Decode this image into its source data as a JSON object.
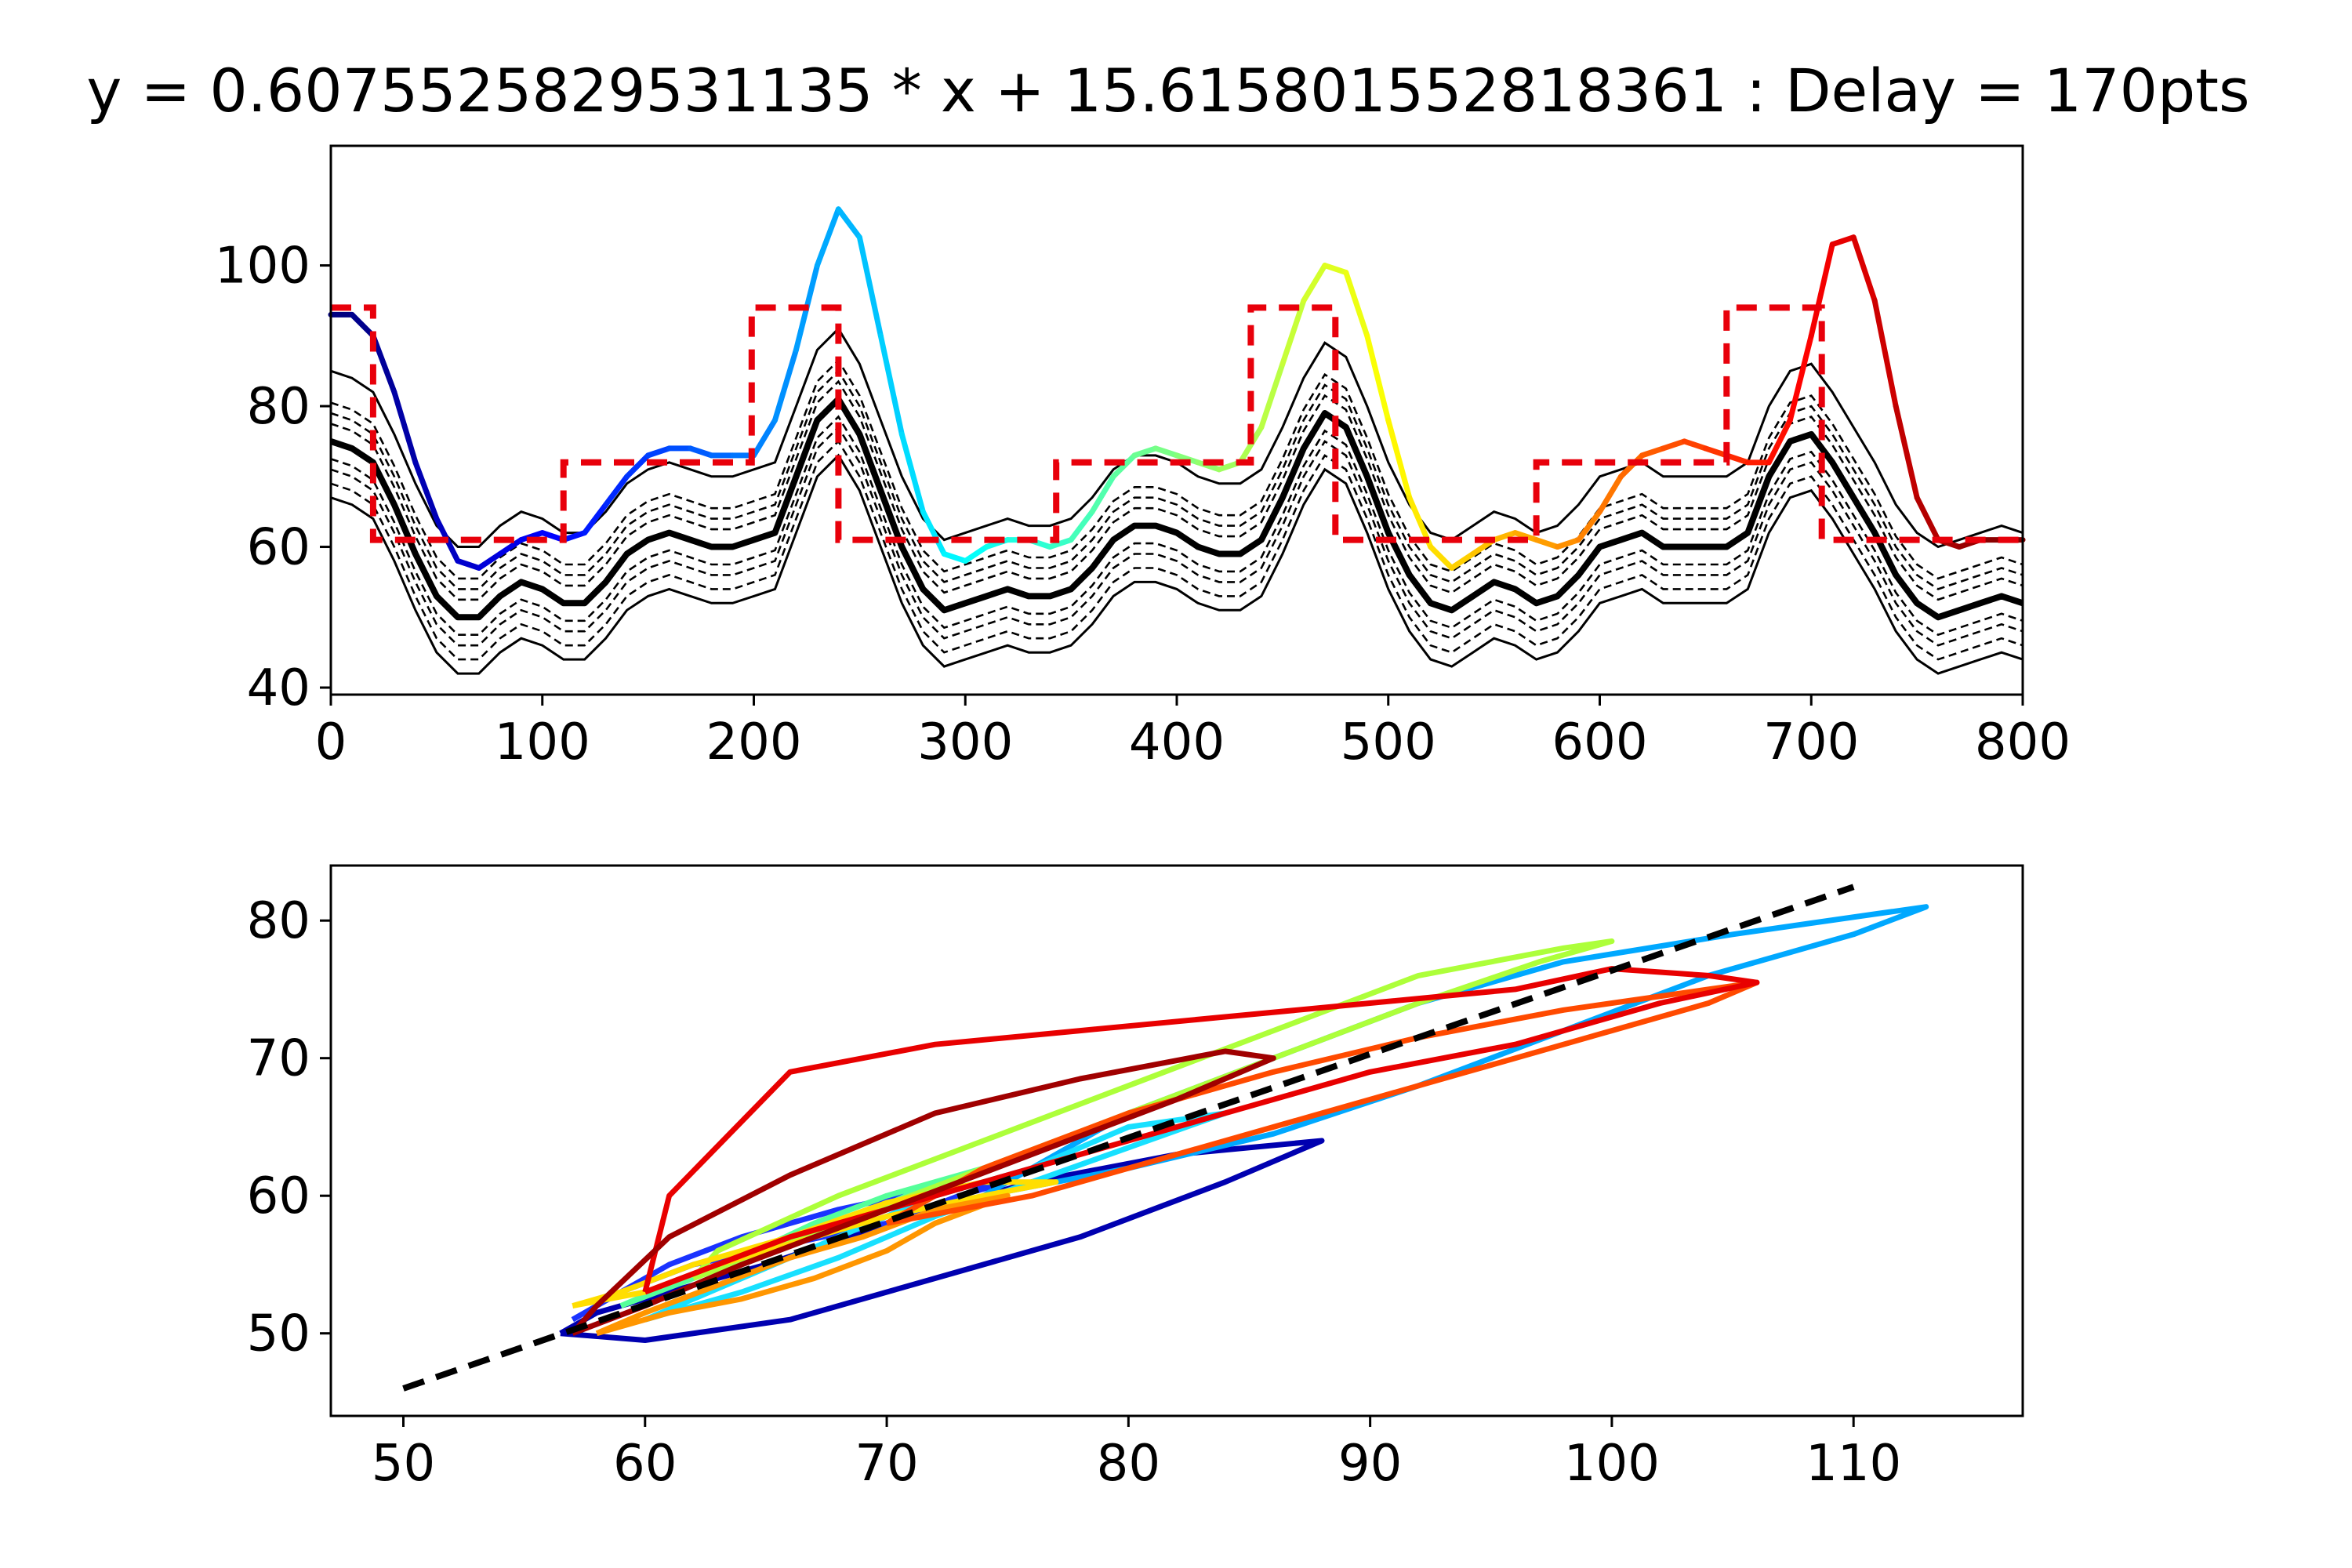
{
  "title": "y = 0.6075525829531135 * x + 15.615801552818361 : Delay = 170pts",
  "chart_data": [
    {
      "type": "line",
      "x_range": [
        0,
        800
      ],
      "ylim": [
        39,
        117
      ],
      "xticks": [
        0,
        100,
        200,
        300,
        400,
        500,
        600,
        700,
        800
      ],
      "yticks": [
        40,
        60,
        80,
        100
      ],
      "xlabel": "",
      "ylabel": "",
      "grid": false,
      "colored_signal": {
        "colormap": "jet",
        "x": [
          0,
          10,
          20,
          30,
          40,
          50,
          60,
          70,
          80,
          90,
          100,
          110,
          120,
          130,
          140,
          150,
          160,
          170,
          180,
          190,
          200,
          210,
          220,
          230,
          240,
          250,
          260,
          270,
          280,
          290,
          300,
          310,
          320,
          330,
          340,
          350,
          360,
          370,
          380,
          390,
          400,
          410,
          420,
          430,
          440,
          450,
          460,
          470,
          480,
          490,
          500,
          510,
          520,
          530,
          540,
          550,
          560,
          570,
          580,
          590,
          600,
          610,
          620,
          630,
          640,
          650,
          660,
          670,
          680,
          690,
          700,
          710,
          720,
          730,
          740,
          750,
          760,
          770,
          780,
          790,
          800
        ],
        "y": [
          93,
          93,
          90,
          82,
          72,
          64,
          58,
          57,
          59,
          61,
          62,
          61,
          62,
          66,
          70,
          73,
          74,
          74,
          73,
          73,
          73,
          78,
          88,
          100,
          108,
          104,
          90,
          76,
          65,
          59,
          58,
          60,
          61,
          61,
          60,
          61,
          65,
          70,
          73,
          74,
          73,
          72,
          71,
          72,
          77,
          86,
          95,
          100,
          99,
          90,
          78,
          67,
          60,
          57,
          59,
          61,
          62,
          61,
          60,
          61,
          65,
          70,
          73,
          74,
          75,
          74,
          73,
          72,
          72,
          78,
          90,
          103,
          104,
          95,
          80,
          67,
          61,
          60,
          61,
          61,
          61
        ]
      },
      "step_signal": {
        "color": "#e8000b",
        "style": "dashed",
        "x": [
          0,
          20,
          20,
          110,
          110,
          199,
          199,
          240,
          240,
          343,
          343,
          435,
          435,
          475,
          475,
          570,
          570,
          660,
          660,
          705,
          705,
          800
        ],
        "y": [
          94,
          94,
          61,
          61,
          72,
          72,
          94,
          94,
          61,
          61,
          72,
          72,
          94,
          94,
          61,
          61,
          72,
          72,
          94,
          94,
          61,
          61
        ]
      },
      "model_mean": {
        "color": "#000000",
        "x": [
          0,
          10,
          20,
          30,
          40,
          50,
          60,
          70,
          80,
          90,
          100,
          110,
          120,
          130,
          140,
          150,
          160,
          170,
          180,
          190,
          200,
          210,
          220,
          230,
          240,
          250,
          260,
          270,
          280,
          290,
          300,
          310,
          320,
          330,
          340,
          350,
          360,
          370,
          380,
          390,
          400,
          410,
          420,
          430,
          440,
          450,
          460,
          470,
          480,
          490,
          500,
          510,
          520,
          530,
          540,
          550,
          560,
          570,
          580,
          590,
          600,
          610,
          620,
          630,
          640,
          650,
          660,
          670,
          680,
          690,
          700,
          710,
          720,
          730,
          740,
          750,
          760,
          770,
          780,
          790,
          800
        ],
        "y": [
          75,
          74,
          72,
          66,
          59,
          53,
          50,
          50,
          53,
          55,
          54,
          52,
          52,
          55,
          59,
          61,
          62,
          61,
          60,
          60,
          61,
          62,
          70,
          78,
          81,
          76,
          68,
          60,
          54,
          51,
          52,
          53,
          54,
          53,
          53,
          54,
          57,
          61,
          63,
          63,
          62,
          60,
          59,
          59,
          61,
          67,
          74,
          79,
          77,
          70,
          62,
          56,
          52,
          51,
          53,
          55,
          54,
          52,
          53,
          56,
          60,
          61,
          62,
          60,
          60,
          60,
          60,
          62,
          70,
          75,
          76,
          72,
          67,
          62,
          56,
          52,
          50,
          51,
          52,
          53,
          52
        ]
      },
      "confidence_offsets": [
        10,
        5.5,
        4,
        2.5,
        -2.5,
        -4,
        -6,
        -8
      ]
    },
    {
      "type": "scatter",
      "xlim": [
        47,
        117
      ],
      "ylim": [
        44,
        84
      ],
      "xticks": [
        50,
        60,
        70,
        80,
        90,
        100,
        110
      ],
      "yticks": [
        50,
        60,
        70,
        80
      ],
      "xlabel": "",
      "ylabel": "",
      "grid": false,
      "fit_line": {
        "slope": 0.6075525829531135,
        "intercept": 15.615801552818361,
        "x": [
          50,
          110
        ],
        "color": "#000000",
        "style": "dashed"
      },
      "loops": [
        {
          "color": "#0000b0",
          "x": [
            56.5,
            60,
            66,
            72,
            78,
            84,
            88,
            82,
            76,
            70,
            65,
            61,
            58,
            56.5
          ],
          "y": [
            50,
            49.5,
            51,
            54,
            57,
            61,
            64,
            63,
            61,
            58,
            55,
            53,
            51.5,
            50
          ]
        },
        {
          "color": "#1a33ff",
          "x": [
            57,
            59,
            62,
            66,
            70,
            73,
            75,
            72,
            68,
            64,
            61,
            59,
            57
          ],
          "y": [
            51,
            53,
            55,
            56.5,
            58,
            60,
            61,
            60.5,
            59,
            57,
            55,
            53,
            51
          ]
        },
        {
          "color": "#00a8ff",
          "x": [
            74,
            80,
            86,
            92,
            98,
            104,
            110,
            113,
            111,
            105,
            98,
            92,
            86,
            80,
            76,
            74
          ],
          "y": [
            60,
            62,
            64.5,
            68,
            72,
            76,
            79,
            81,
            80.5,
            79,
            77,
            74,
            70,
            66,
            62,
            60
          ]
        },
        {
          "color": "#18e0ff",
          "x": [
            60,
            64,
            68,
            72,
            76,
            80,
            84,
            80,
            76,
            72,
            68,
            64,
            60
          ],
          "y": [
            51,
            53,
            55.5,
            58.5,
            61,
            63.5,
            66,
            65,
            62,
            60,
            57,
            54,
            51
          ]
        },
        {
          "color": "#55ff9a",
          "x": [
            59,
            62,
            65,
            69,
            72,
            74,
            73,
            70,
            67,
            64,
            61,
            59
          ],
          "y": [
            52,
            54,
            56,
            58.5,
            61,
            62,
            61.5,
            60,
            58,
            55.5,
            53.5,
            52
          ]
        },
        {
          "color": "#adff3a",
          "x": [
            62,
            68,
            74,
            80,
            86,
            92,
            97,
            100,
            98,
            92,
            86,
            80,
            74,
            68,
            63,
            62
          ],
          "y": [
            54,
            58,
            62,
            66,
            70,
            74,
            77,
            78.5,
            78,
            76,
            72,
            68,
            64,
            60,
            56,
            54
          ]
        },
        {
          "color": "#ffde00",
          "x": [
            57,
            60,
            63,
            66,
            70,
            74,
            77,
            74,
            70,
            66,
            62,
            59,
            57
          ],
          "y": [
            52,
            53,
            55,
            56.5,
            58.5,
            60,
            61,
            61,
            59.5,
            57,
            55,
            53,
            52
          ]
        },
        {
          "color": "#ff9600",
          "x": [
            58,
            61,
            64,
            67,
            70,
            72,
            75,
            72,
            69,
            66,
            63,
            60,
            58
          ],
          "y": [
            50,
            51.5,
            52.5,
            54,
            56,
            58,
            60,
            59,
            57,
            55.5,
            53.5,
            51.5,
            50
          ]
        },
        {
          "color": "#ff4a00",
          "x": [
            70,
            76,
            82,
            88,
            94,
            100,
            104,
            106,
            104,
            98,
            92,
            86,
            80,
            74,
            70
          ],
          "y": [
            58,
            60,
            63,
            66,
            69,
            72,
            74,
            75.5,
            75,
            73.5,
            71.5,
            69,
            66,
            62,
            58
          ]
        },
        {
          "color": "#e80000",
          "x": [
            60,
            66,
            72,
            78,
            84,
            90,
            96,
            102,
            106,
            104,
            100,
            96,
            90,
            84,
            78,
            72,
            66,
            61,
            60
          ],
          "y": [
            53,
            57,
            60,
            63,
            66,
            69,
            71,
            74,
            75.5,
            76,
            76.5,
            75,
            74,
            73,
            72,
            71,
            69,
            60,
            53
          ]
        },
        {
          "color": "#a00000",
          "x": [
            57,
            60,
            64,
            70,
            76,
            82,
            86,
            84,
            78,
            72,
            66,
            61,
            58,
            57
          ],
          "y": [
            50,
            52,
            55,
            59,
            63,
            67,
            70,
            70.5,
            68.5,
            66,
            61.5,
            57,
            52,
            50
          ]
        }
      ]
    }
  ]
}
